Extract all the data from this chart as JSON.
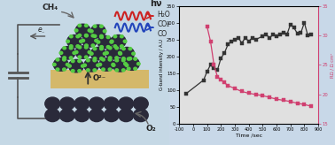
{
  "graph_bg": "#e0e0e0",
  "fig_bg": "#c8d8e8",
  "xlim": [
    -100,
    900
  ],
  "ylim_left": [
    0,
    350
  ],
  "yticks_left": [
    0,
    50,
    100,
    150,
    200,
    250,
    300,
    350
  ],
  "ylim_right": [
    15,
    35
  ],
  "yticks_right": [
    15,
    20,
    25,
    30,
    35
  ],
  "xlabel": "Time /sec",
  "ylabel_left": "G-band intensity / A.U",
  "ylabel_right": "RΩ / Ω cm²",
  "black_x": [
    -50,
    75,
    100,
    125,
    150,
    175,
    200,
    225,
    250,
    275,
    300,
    325,
    350,
    375,
    400,
    425,
    450,
    500,
    525,
    550,
    575,
    600,
    625,
    650,
    675,
    700,
    725,
    750,
    775,
    800,
    825,
    850
  ],
  "black_y": [
    90,
    130,
    155,
    175,
    165,
    160,
    195,
    210,
    235,
    245,
    250,
    255,
    240,
    255,
    245,
    255,
    250,
    260,
    265,
    255,
    265,
    260,
    265,
    270,
    265,
    295,
    285,
    268,
    270,
    300,
    262,
    265
  ],
  "pink_x": [
    100,
    125,
    150,
    175,
    200,
    225,
    250,
    300,
    350,
    400,
    450,
    500,
    550,
    600,
    650,
    700,
    750,
    800,
    850
  ],
  "pink_y": [
    31.5,
    29,
    25,
    23,
    22.5,
    22,
    21.5,
    21,
    20.5,
    20.2,
    20,
    19.8,
    19.5,
    19.2,
    19,
    18.8,
    18.5,
    18.3,
    18
  ],
  "black_color": "#333333",
  "pink_color": "#d04070",
  "marker_size": 2.8,
  "line_width": 0.9,
  "diag_bg": "#c5d8e5",
  "wire_color": "#555555",
  "sphere_color": "#2a2a3a",
  "green_color": "#55cc44",
  "ysz_color": "#d4b86a",
  "wave_red": "#cc2222",
  "wave_blue": "#2244bb",
  "text_color": "#222222"
}
